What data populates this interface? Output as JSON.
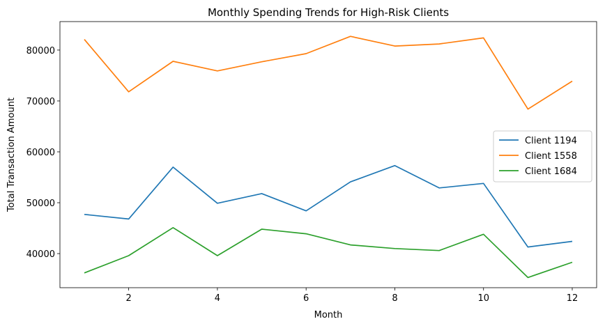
{
  "chart_data": {
    "type": "line",
    "title": "Monthly Spending Trends for High-Risk Clients",
    "xlabel": "Month",
    "ylabel": "Total Transaction Amount",
    "x": [
      1,
      2,
      3,
      4,
      5,
      6,
      7,
      8,
      9,
      10,
      11,
      12
    ],
    "xlim": [
      0.45,
      12.55
    ],
    "ylim": [
      33300,
      85600
    ],
    "xticks": [
      2,
      4,
      6,
      8,
      10,
      12
    ],
    "yticks": [
      40000,
      50000,
      60000,
      70000,
      80000
    ],
    "grid": false,
    "legend_position": "center-right",
    "series": [
      {
        "name": "Client 1194",
        "color": "#1f77b4",
        "values": [
          47700,
          46800,
          57000,
          49900,
          51800,
          48400,
          54100,
          57300,
          52900,
          53800,
          41300,
          42400
        ]
      },
      {
        "name": "Client 1558",
        "color": "#ff7f0e",
        "values": [
          82100,
          71800,
          77800,
          75900,
          77700,
          79300,
          82700,
          80800,
          81200,
          82400,
          68400,
          73900
        ]
      },
      {
        "name": "Client 1684",
        "color": "#2ca02c",
        "values": [
          36200,
          39600,
          45100,
          39600,
          44800,
          43900,
          41700,
          41000,
          40600,
          43800,
          35300,
          38300
        ]
      }
    ]
  }
}
